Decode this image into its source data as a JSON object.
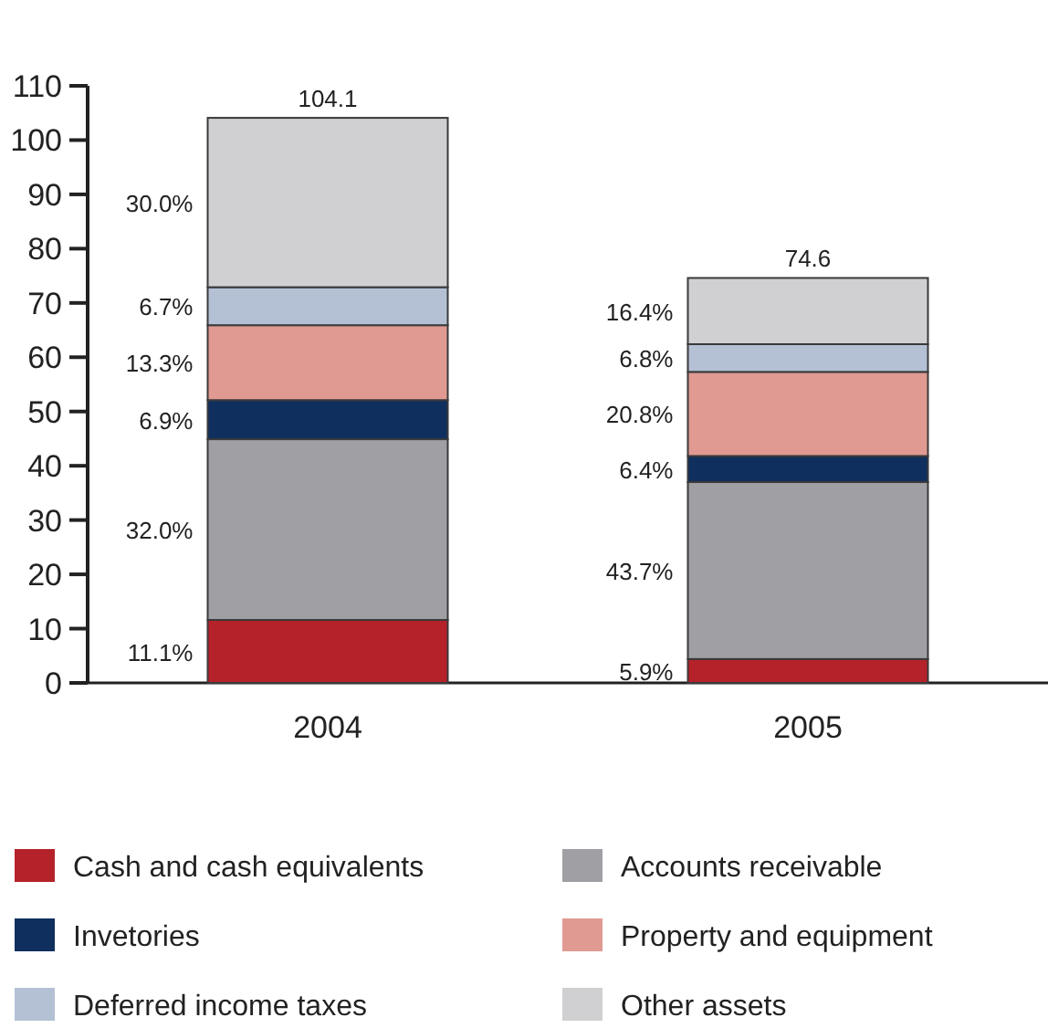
{
  "chart_data": {
    "type": "bar",
    "stacked": true,
    "categories": [
      "2004",
      "2005"
    ],
    "ylim": [
      0,
      110
    ],
    "yticks": [
      0,
      10,
      20,
      30,
      40,
      50,
      60,
      70,
      80,
      90,
      100,
      110
    ],
    "grid": false,
    "legend": "bottom",
    "totals": [
      "104.1",
      "74.6"
    ],
    "series": [
      {
        "name": "Cash and cash equivalents",
        "color": "#b5222a",
        "values": [
          11.6,
          4.4
        ]
      },
      {
        "name": "Accounts receivable",
        "color": "#a09fa4",
        "values": [
          33.3,
          32.6
        ]
      },
      {
        "name": "Invetories",
        "color": "#0f2f5f",
        "values": [
          7.2,
          4.8
        ]
      },
      {
        "name": "Property and equipment",
        "color": "#e09a92",
        "values": [
          13.8,
          15.5
        ]
      },
      {
        "name": "Deferred income taxes",
        "color": "#b4c0d4",
        "values": [
          7.0,
          5.1
        ]
      },
      {
        "name": "Other assets",
        "color": "#d0d0d2",
        "values": [
          31.2,
          12.2
        ]
      }
    ],
    "annotations": [
      "11.1%",
      "32.0%",
      "6.9%",
      "13.3%",
      "6.7%",
      "30.0%",
      "5.9%",
      "43.7%",
      "6.4%",
      "20.8%",
      "6.8%",
      "16.4%"
    ]
  }
}
